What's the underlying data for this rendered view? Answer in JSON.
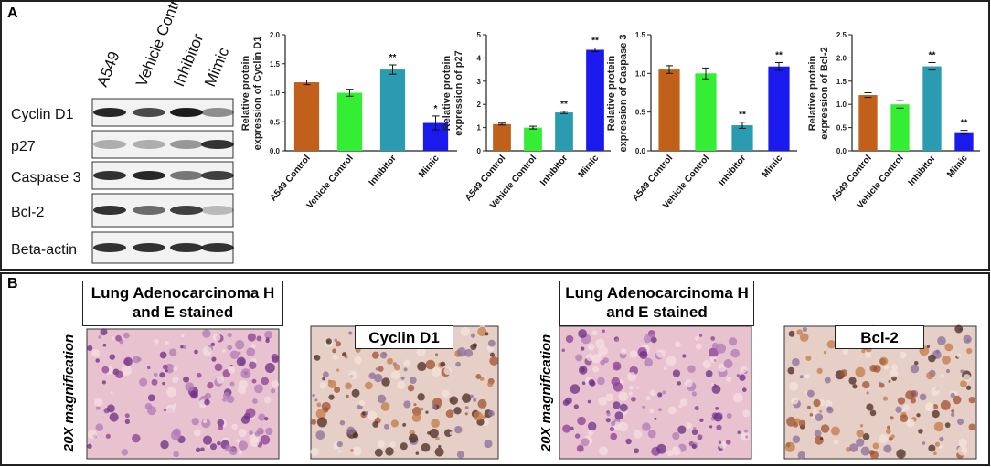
{
  "panel_labels": [
    "A",
    "B"
  ],
  "blot": {
    "lanes": [
      "A549",
      "Vehicle Control",
      "Inhibitor",
      "Mimic"
    ],
    "proteins": [
      "Cyclin D1",
      "p27",
      "Caspase 3",
      "Bcl-2",
      "Beta-actin"
    ]
  },
  "chart_data": [
    {
      "type": "bar",
      "ylabel": "Relative protein expression of Cyclin D1",
      "categories": [
        "A549 Control",
        "Vehicle Control",
        "Inhibitor",
        "Mimic"
      ],
      "values": [
        1.18,
        1.0,
        1.4,
        0.48
      ],
      "errors": [
        0.04,
        0.06,
        0.08,
        0.12
      ],
      "colors": [
        "#c0601a",
        "#33ee33",
        "#2a9bb0",
        "#1a1aee"
      ],
      "annotations": [
        {
          "x": "Inhibitor",
          "text": "**"
        },
        {
          "x": "Mimic",
          "text": "*"
        }
      ],
      "ylim": [
        0,
        2
      ],
      "yticks": [
        {
          "value": 0,
          "label": "0.0"
        },
        {
          "value": 0.5,
          "label": "0.5"
        },
        {
          "value": 1,
          "label": "1.0"
        },
        {
          "value": 1.5,
          "label": "1.5"
        },
        {
          "value": 2,
          "label": "2.0"
        }
      ]
    },
    {
      "type": "bar",
      "ylabel": "Relative protein expression of p27",
      "categories": [
        "A549 Control",
        "Vehicle Control",
        "Inhibitor",
        "Mimic"
      ],
      "values": [
        1.15,
        1.0,
        1.65,
        4.35
      ],
      "errors": [
        0.04,
        0.06,
        0.05,
        0.08
      ],
      "colors": [
        "#c0601a",
        "#33ee33",
        "#2a9bb0",
        "#1a1aee"
      ],
      "annotations": [
        {
          "x": "Inhibitor",
          "text": "**"
        },
        {
          "x": "Mimic",
          "text": "**"
        }
      ],
      "ylim": [
        0,
        5
      ],
      "yticks": [
        0,
        1,
        2,
        3,
        4,
        5
      ]
    },
    {
      "type": "bar",
      "ylabel": "Relative protein expression of Caspase 3",
      "categories": [
        "A549 Control",
        "Vehicle Control",
        "Inhibitor",
        "Mimic"
      ],
      "values": [
        1.05,
        1.0,
        0.33,
        1.09
      ],
      "errors": [
        0.05,
        0.07,
        0.04,
        0.05
      ],
      "colors": [
        "#c0601a",
        "#33ee33",
        "#2a9bb0",
        "#1a1aee"
      ],
      "annotations": [
        {
          "x": "Inhibitor",
          "text": "**"
        },
        {
          "x": "Mimic",
          "text": "**"
        }
      ],
      "ylim": [
        0,
        1.5
      ],
      "yticks": [
        {
          "value": 0,
          "label": "0.0"
        },
        {
          "value": 0.5,
          "label": "0.5"
        },
        {
          "value": 1,
          "label": "1.0"
        },
        {
          "value": 1.5,
          "label": "1.5"
        }
      ]
    },
    {
      "type": "bar",
      "ylabel": "Relative protein expression of Bcl-2",
      "categories": [
        "A549 Control",
        "Vehicle Control",
        "Inhibitor",
        "Mimic"
      ],
      "values": [
        1.2,
        1.0,
        1.82,
        0.4
      ],
      "errors": [
        0.05,
        0.08,
        0.08,
        0.04
      ],
      "colors": [
        "#c0601a",
        "#33ee33",
        "#2a9bb0",
        "#1a1aee"
      ],
      "annotations": [
        {
          "x": "Inhibitor",
          "text": "**"
        },
        {
          "x": "Mimic",
          "text": "**"
        }
      ],
      "ylim": [
        0,
        2.5
      ],
      "yticks": [
        {
          "value": 0,
          "label": "0.0"
        },
        {
          "value": 0.5,
          "label": "0.5"
        },
        {
          "value": 1,
          "label": "1.0"
        },
        {
          "value": 1.5,
          "label": "1.5"
        },
        {
          "value": 2,
          "label": "2.0"
        },
        {
          "value": 2.5,
          "label": "2.5"
        }
      ]
    }
  ],
  "histology": {
    "magnification": [
      "20X magnification",
      "20X magnification"
    ],
    "captions": [
      "Lung Adenocarcinoma H and E stained",
      "Cyclin D1",
      "Lung Adenocarcinoma H and E stained",
      "Bcl-2"
    ]
  }
}
